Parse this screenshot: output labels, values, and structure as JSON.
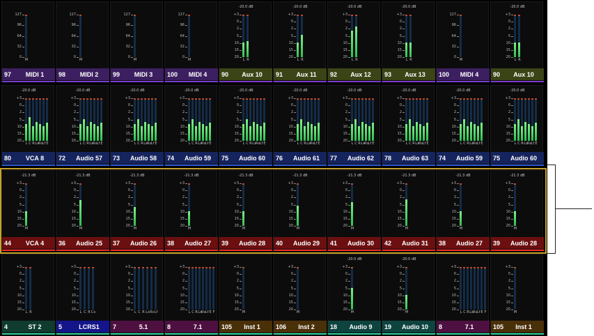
{
  "rows": [
    {
      "strips": [
        {
          "num": "97",
          "name": "MIDI 1",
          "color": "#3c1f60",
          "db": "",
          "scale": [
            "127",
            "96",
            "64",
            "32",
            "0"
          ],
          "channels": [
            "M"
          ],
          "levels": [
            0.0
          ],
          "fill": "blue"
        },
        {
          "num": "98",
          "name": "MIDI 2",
          "color": "#3c1f60",
          "db": "",
          "scale": [
            "127",
            "96",
            "64",
            "32",
            "0"
          ],
          "channels": [
            "M"
          ],
          "levels": [
            0.0
          ],
          "fill": "blue"
        },
        {
          "num": "99",
          "name": "MIDI 3",
          "color": "#3c1f60",
          "db": "",
          "scale": [
            "127",
            "96",
            "64",
            "32",
            "0"
          ],
          "channels": [
            "M"
          ],
          "levels": [
            0.0
          ],
          "fill": "blue"
        },
        {
          "num": "100",
          "name": "MIDI 4",
          "color": "#3c1f60",
          "db": "",
          "scale": [
            "127",
            "96",
            "64",
            "32",
            "0"
          ],
          "channels": [
            "M"
          ],
          "levels": [
            0.0
          ],
          "fill": "blue"
        },
        {
          "num": "90",
          "name": "Aux 10",
          "color": "#3b4416",
          "db": "-20.0 dB",
          "scale": [
            "+3",
            "0",
            "2",
            "5",
            "10",
            "15",
            "20"
          ],
          "channels": [
            "L",
            "R"
          ],
          "levels": [
            0.35,
            0.38
          ],
          "fill": "green"
        },
        {
          "num": "91",
          "name": "Aux 11",
          "color": "#3b4416",
          "db": "-20.0 dB",
          "scale": [
            "+3",
            "0",
            "2",
            "5",
            "10",
            "15",
            "20"
          ],
          "channels": [
            "L",
            "R"
          ],
          "levels": [
            0.35,
            0.52
          ],
          "fill": "green"
        },
        {
          "num": "92",
          "name": "Aux 12",
          "color": "#3b4416",
          "db": "-20.0 dB",
          "scale": [
            "+3",
            "0",
            "2",
            "5",
            "10",
            "15",
            "20"
          ],
          "channels": [
            "L",
            "R"
          ],
          "levels": [
            0.62,
            0.72
          ],
          "fill": "green"
        },
        {
          "num": "93",
          "name": "Aux 13",
          "color": "#3b4416",
          "db": "-20.0 dB",
          "scale": [
            "+3",
            "0",
            "2",
            "5",
            "10",
            "15",
            "20"
          ],
          "channels": [
            "L",
            "R"
          ],
          "levels": [
            0.35,
            0.35
          ],
          "fill": "green"
        },
        {
          "num": "100",
          "name": "MIDI 4",
          "color": "#3c1f60",
          "db": "",
          "scale": [
            "127",
            "96",
            "64",
            "32",
            "0"
          ],
          "channels": [
            "M"
          ],
          "levels": [
            0.0
          ],
          "fill": "blue"
        },
        {
          "num": "90",
          "name": "Aux 10",
          "color": "#3b4416",
          "db": "-20.0 dB",
          "scale": [
            "+3",
            "0",
            "2",
            "5",
            "10",
            "15",
            "20"
          ],
          "channels": [
            "L",
            "R"
          ],
          "levels": [
            0.35,
            0.35
          ],
          "fill": "green"
        }
      ]
    },
    {
      "strips": [
        {
          "num": "80",
          "name": "VCA 8",
          "color": "#16245e",
          "db": "-20.0 dB",
          "scale": [
            "+3",
            "0",
            "2",
            "5",
            "10",
            "15",
            "20"
          ],
          "channels": [
            "L",
            "C",
            "R",
            "Ls",
            "Rs",
            "Lf",
            "E"
          ],
          "levels": [
            0.4,
            0.55,
            0.35,
            0.45,
            0.4,
            0.35,
            0.42
          ],
          "fill": "green"
        },
        {
          "num": "72",
          "name": "Audio 57",
          "color": "#16245e",
          "db": "-20.0 dB",
          "scale": [
            "+3",
            "0",
            "2",
            "5",
            "10",
            "15",
            "20"
          ],
          "channels": [
            "L",
            "C",
            "R",
            "Ls",
            "Rs",
            "Lf",
            "E"
          ],
          "levels": [
            0.4,
            0.5,
            0.35,
            0.45,
            0.4,
            0.35,
            0.42
          ],
          "fill": "green"
        },
        {
          "num": "73",
          "name": "Audio 58",
          "color": "#16245e",
          "db": "-20.0 dB",
          "scale": [
            "+3",
            "0",
            "2",
            "5",
            "10",
            "15",
            "20"
          ],
          "channels": [
            "L",
            "C",
            "R",
            "Ls",
            "Rs",
            "Lf",
            "E"
          ],
          "levels": [
            0.4,
            0.5,
            0.35,
            0.45,
            0.4,
            0.35,
            0.42
          ],
          "fill": "green"
        },
        {
          "num": "74",
          "name": "Audio 59",
          "color": "#16245e",
          "db": "-20.0 dB",
          "scale": [
            "+3",
            "0",
            "2",
            "5",
            "10",
            "15",
            "20"
          ],
          "channels": [
            "L",
            "C",
            "R",
            "Ls",
            "Rs",
            "Lf",
            "E"
          ],
          "levels": [
            0.4,
            0.5,
            0.35,
            0.45,
            0.4,
            0.35,
            0.42
          ],
          "fill": "green"
        },
        {
          "num": "75",
          "name": "Audio 60",
          "color": "#16245e",
          "db": "-20.0 dB",
          "scale": [
            "+3",
            "0",
            "2",
            "5",
            "10",
            "15",
            "20"
          ],
          "channels": [
            "L",
            "C",
            "R",
            "Ls",
            "Rs",
            "Lf",
            "E"
          ],
          "levels": [
            0.4,
            0.5,
            0.35,
            0.45,
            0.4,
            0.35,
            0.42
          ],
          "fill": "green"
        },
        {
          "num": "76",
          "name": "Audio 61",
          "color": "#16245e",
          "db": "-20.0 dB",
          "scale": [
            "+3",
            "0",
            "2",
            "5",
            "10",
            "15",
            "20"
          ],
          "channels": [
            "L",
            "C",
            "R",
            "Ls",
            "Rs",
            "Lf",
            "E"
          ],
          "levels": [
            0.4,
            0.5,
            0.35,
            0.45,
            0.4,
            0.35,
            0.42
          ],
          "fill": "green"
        },
        {
          "num": "77",
          "name": "Audio 62",
          "color": "#16245e",
          "db": "-20.0 dB",
          "scale": [
            "+3",
            "0",
            "2",
            "5",
            "10",
            "15",
            "20"
          ],
          "channels": [
            "L",
            "C",
            "R",
            "Ls",
            "Rs",
            "Lf",
            "E"
          ],
          "levels": [
            0.4,
            0.5,
            0.35,
            0.45,
            0.4,
            0.35,
            0.42
          ],
          "fill": "green"
        },
        {
          "num": "78",
          "name": "Audio 63",
          "color": "#16245e",
          "db": "-20.0 dB",
          "scale": [
            "+3",
            "0",
            "2",
            "5",
            "10",
            "15",
            "20"
          ],
          "channels": [
            "L",
            "C",
            "R",
            "Ls",
            "Rs",
            "Lf",
            "E"
          ],
          "levels": [
            0.4,
            0.5,
            0.35,
            0.45,
            0.4,
            0.35,
            0.42
          ],
          "fill": "green"
        },
        {
          "num": "74",
          "name": "Audio 59",
          "color": "#16245e",
          "db": "-20.0 dB",
          "scale": [
            "+3",
            "0",
            "2",
            "5",
            "10",
            "15",
            "20"
          ],
          "channels": [
            "L",
            "C",
            "R",
            "Ls",
            "Rs",
            "Lf",
            "E"
          ],
          "levels": [
            0.4,
            0.5,
            0.35,
            0.45,
            0.4,
            0.35,
            0.42
          ],
          "fill": "green"
        },
        {
          "num": "75",
          "name": "Audio 60",
          "color": "#16245e",
          "db": "-20.0 dB",
          "scale": [
            "+3",
            "0",
            "2",
            "5",
            "10",
            "15",
            "20"
          ],
          "channels": [
            "L",
            "C",
            "R",
            "Ls",
            "Rs",
            "Lf",
            "E"
          ],
          "levels": [
            0.4,
            0.5,
            0.35,
            0.45,
            0.4,
            0.35,
            0.42
          ],
          "fill": "green"
        }
      ]
    },
    {
      "strips": [
        {
          "num": "44",
          "name": "VCA 4",
          "color": "#6b0f10",
          "db": "-21.3 dB",
          "scale": [
            "+3",
            "0",
            "2",
            "5",
            "10",
            "15",
            "20"
          ],
          "channels": [
            "M"
          ],
          "levels": [
            0.35
          ],
          "fill": "green"
        },
        {
          "num": "36",
          "name": "Audio 25",
          "color": "#6b0f10",
          "db": "-21.3 dB",
          "scale": [
            "+3",
            "0",
            "2",
            "5",
            "10",
            "15",
            "20"
          ],
          "channels": [
            "M"
          ],
          "levels": [
            0.6
          ],
          "fill": "green"
        },
        {
          "num": "37",
          "name": "Audio 26",
          "color": "#6b0f10",
          "db": "-21.3 dB",
          "scale": [
            "+3",
            "0",
            "2",
            "5",
            "10",
            "15",
            "20"
          ],
          "channels": [
            "M"
          ],
          "levels": [
            0.45
          ],
          "fill": "green"
        },
        {
          "num": "38",
          "name": "Audio 27",
          "color": "#6b0f10",
          "db": "-21.3 dB",
          "scale": [
            "+3",
            "0",
            "2",
            "5",
            "10",
            "15",
            "20"
          ],
          "channels": [
            "M"
          ],
          "levels": [
            0.35
          ],
          "fill": "green"
        },
        {
          "num": "39",
          "name": "Audio 28",
          "color": "#6b0f10",
          "db": "-21.3 dB",
          "scale": [
            "+3",
            "0",
            "2",
            "5",
            "10",
            "15",
            "20"
          ],
          "channels": [
            "M"
          ],
          "levels": [
            0.35
          ],
          "fill": "green"
        },
        {
          "num": "40",
          "name": "Audio 29",
          "color": "#6b0f10",
          "db": "-21.3 dB",
          "scale": [
            "+3",
            "0",
            "2",
            "5",
            "10",
            "15",
            "20"
          ],
          "channels": [
            "M"
          ],
          "levels": [
            0.48
          ],
          "fill": "green"
        },
        {
          "num": "41",
          "name": "Audio 30",
          "color": "#6b0f10",
          "db": "-21.3 dB",
          "scale": [
            "+3",
            "0",
            "2",
            "5",
            "10",
            "15",
            "20"
          ],
          "channels": [
            "M"
          ],
          "levels": [
            0.55
          ],
          "fill": "green"
        },
        {
          "num": "42",
          "name": "Audio 31",
          "color": "#6b0f10",
          "db": "-21.3 dB",
          "scale": [
            "+3",
            "0",
            "2",
            "5",
            "10",
            "15",
            "20"
          ],
          "channels": [
            "M"
          ],
          "levels": [
            0.62
          ],
          "fill": "green"
        },
        {
          "num": "38",
          "name": "Audio 27",
          "color": "#6b0f10",
          "db": "-21.3 dB",
          "scale": [
            "+3",
            "0",
            "2",
            "5",
            "10",
            "15",
            "20"
          ],
          "channels": [
            "M"
          ],
          "levels": [
            0.35
          ],
          "fill": "green"
        },
        {
          "num": "39",
          "name": "Audio 28",
          "color": "#6b0f10",
          "db": "-21.3 dB",
          "scale": [
            "+3",
            "0",
            "2",
            "5",
            "10",
            "15",
            "20"
          ],
          "channels": [
            "M"
          ],
          "levels": [
            0.35
          ],
          "fill": "green"
        }
      ]
    },
    {
      "strips": [
        {
          "num": "4",
          "name": "ST 2",
          "color": "#0f3c2e",
          "db": "",
          "scale": [
            "+3",
            "0",
            "2",
            "5",
            "10",
            "15",
            "20"
          ],
          "channels": [
            "L",
            "R"
          ],
          "levels": [
            0.0,
            0.0
          ],
          "fill": "green"
        },
        {
          "num": "5",
          "name": "LCRS1",
          "color": "#14158a",
          "db": "",
          "scale": [
            "+3",
            "0",
            "2",
            "5",
            "10",
            "15",
            "20"
          ],
          "channels": [
            "L",
            "C",
            "R",
            "Cs"
          ],
          "levels": [
            0.0,
            0.0,
            0.0,
            0.0
          ],
          "fill": "green"
        },
        {
          "num": "7",
          "name": "5.1",
          "color": "#4e1040",
          "db": "",
          "scale": [
            "+3",
            "0",
            "2",
            "5",
            "10",
            "15",
            "20"
          ],
          "channels": [
            "L",
            "C",
            "R",
            "Ls",
            "Rs",
            "Lf"
          ],
          "levels": [
            0,
            0,
            0,
            0,
            0,
            0
          ],
          "fill": "green"
        },
        {
          "num": "8",
          "name": "7.1",
          "color": "#4e1040",
          "db": "",
          "scale": [
            "+3",
            "0",
            "2",
            "5",
            "10",
            "15",
            "20"
          ],
          "channels": [
            "L",
            "C",
            "R",
            "Ls",
            "Rs",
            "Lf",
            "E",
            "F"
          ],
          "levels": [
            0,
            0,
            0,
            0,
            0,
            0,
            0,
            0
          ],
          "fill": "green"
        },
        {
          "num": "105",
          "name": "Inst 1",
          "color": "#4a3008",
          "db": "",
          "scale": [
            "+3",
            "0",
            "2",
            "5",
            "10",
            "15",
            "20"
          ],
          "channels": [
            "M"
          ],
          "levels": [
            0.0
          ],
          "fill": "green"
        },
        {
          "num": "106",
          "name": "Inst 2",
          "color": "#4a3008",
          "db": "",
          "scale": [
            "+3",
            "0",
            "2",
            "5",
            "10",
            "15",
            "20"
          ],
          "channels": [
            "M"
          ],
          "levels": [
            0.0
          ],
          "fill": "green"
        },
        {
          "num": "18",
          "name": "Audio 9",
          "color": "#0e4440",
          "db": "-20.0 dB",
          "scale": [
            "+3",
            "0",
            "2",
            "5",
            "10",
            "15",
            "20"
          ],
          "channels": [
            "M"
          ],
          "levels": [
            0.5
          ],
          "fill": "green"
        },
        {
          "num": "19",
          "name": "Audio 10",
          "color": "#0e4440",
          "db": "-20.0 dB",
          "scale": [
            "+3",
            "0",
            "2",
            "5",
            "10",
            "15",
            "20"
          ],
          "channels": [
            "M"
          ],
          "levels": [
            0.35
          ],
          "fill": "green"
        },
        {
          "num": "8",
          "name": "7.1",
          "color": "#4e1040",
          "db": "",
          "scale": [
            "+3",
            "0",
            "2",
            "5",
            "10",
            "15",
            "20"
          ],
          "channels": [
            "L",
            "C",
            "R",
            "Ls",
            "Rs",
            "Lf",
            "E",
            "F"
          ],
          "levels": [
            0,
            0,
            0,
            0,
            0,
            0,
            0,
            0
          ],
          "fill": "green"
        },
        {
          "num": "105",
          "name": "Inst 1",
          "color": "#4a3008",
          "db": "",
          "scale": [
            "+3",
            "0",
            "2",
            "5",
            "10",
            "15",
            "20"
          ],
          "channels": [
            "M"
          ],
          "levels": [
            0.0
          ],
          "fill": "green"
        }
      ]
    }
  ],
  "accent_colors": {
    "selection_border": "#c8a22a",
    "row_lines": [
      "#7a3bd0",
      "#2c5bd8",
      "#ff2a2a",
      "#2ed3a0"
    ]
  }
}
